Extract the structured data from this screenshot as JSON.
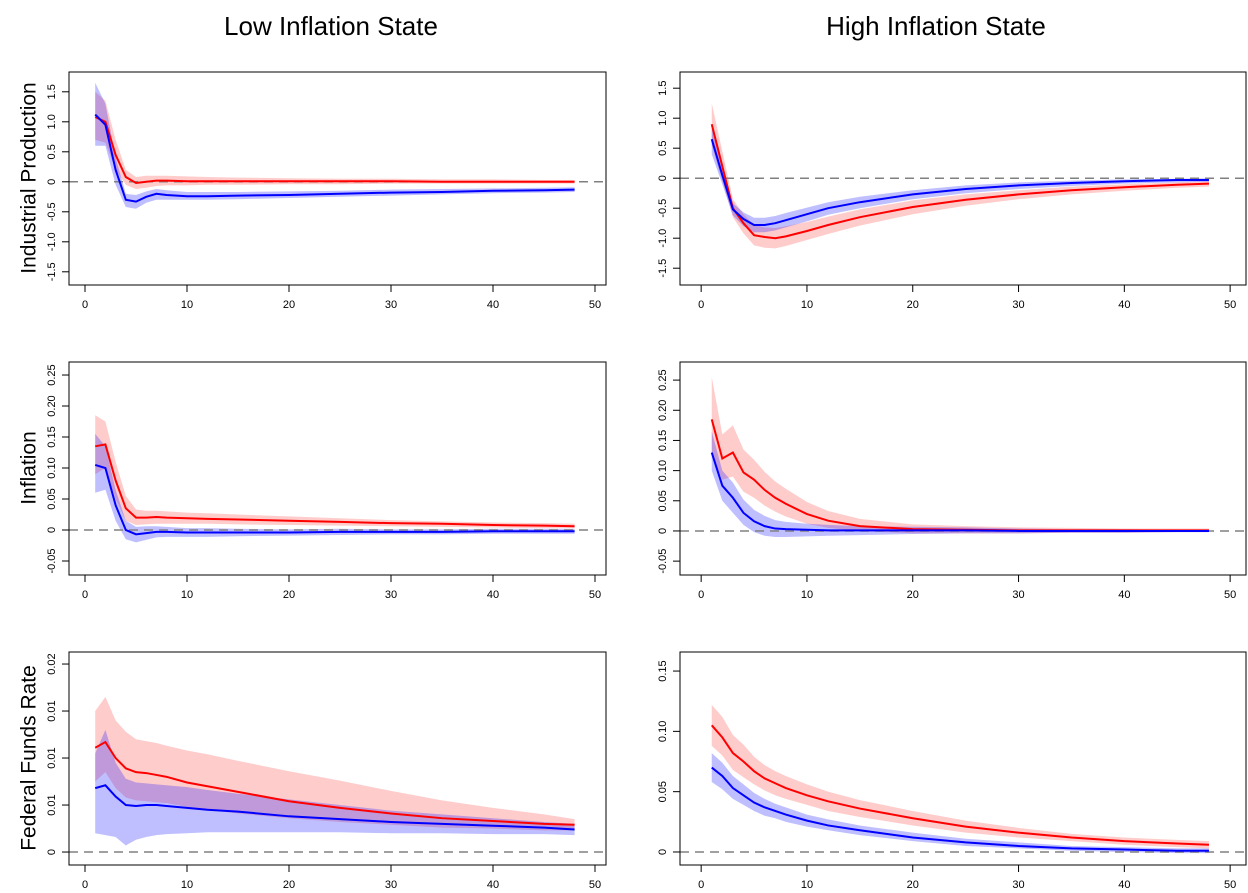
{
  "column_titles": [
    "Low Inflation State",
    "High Inflation State"
  ],
  "row_labels": [
    "Industrial Production",
    "Inflation",
    "Federal Funds Rate"
  ],
  "chart_data": [
    {
      "type": "line",
      "x": [
        1,
        2,
        3,
        4,
        5,
        6,
        7,
        8,
        10,
        12,
        15,
        20,
        25,
        30,
        35,
        40,
        45,
        48
      ],
      "xlim": [
        -1.57,
        51.08
      ],
      "xticks": [
        0,
        10,
        20,
        30,
        40,
        50
      ],
      "ylim": [
        -1.72,
        1.83
      ],
      "yticks": [
        -1.5,
        {
          "value": -1,
          "label": "-1.0"
        },
        -0.5,
        0,
        0.5,
        {
          "value": 1,
          "label": "1.0"
        },
        1.5
      ],
      "hline": 0,
      "series": [
        {
          "color": "#ff0000",
          "band_color": "rgba(255,0,0,0.2)",
          "values": [
            1.08,
            1.0,
            0.45,
            0.08,
            -0.02,
            0.0,
            0.02,
            0.02,
            0.01,
            0.01,
            0.01,
            0.01,
            0.01,
            0.01,
            0.0,
            0.0,
            0.0,
            0.0
          ],
          "lower": [
            0.7,
            0.65,
            0.2,
            -0.05,
            -0.12,
            -0.1,
            -0.07,
            -0.06,
            -0.06,
            -0.05,
            -0.05,
            -0.04,
            -0.04,
            -0.03,
            -0.03,
            -0.03,
            -0.03,
            -0.03
          ],
          "upper": [
            1.5,
            1.35,
            0.7,
            0.2,
            0.08,
            0.1,
            0.1,
            0.1,
            0.09,
            0.08,
            0.07,
            0.06,
            0.05,
            0.05,
            0.04,
            0.04,
            0.03,
            0.03
          ]
        },
        {
          "color": "#0000ff",
          "band_color": "rgba(0,0,255,0.25)",
          "values": [
            1.12,
            0.95,
            0.2,
            -0.3,
            -0.33,
            -0.25,
            -0.2,
            -0.22,
            -0.24,
            -0.24,
            -0.23,
            -0.22,
            -0.2,
            -0.18,
            -0.17,
            -0.15,
            -0.14,
            -0.13
          ],
          "lower": [
            0.6,
            0.6,
            -0.05,
            -0.42,
            -0.45,
            -0.35,
            -0.3,
            -0.3,
            -0.3,
            -0.3,
            -0.29,
            -0.27,
            -0.25,
            -0.23,
            -0.21,
            -0.19,
            -0.18,
            -0.17
          ],
          "upper": [
            1.65,
            1.3,
            0.4,
            -0.2,
            -0.22,
            -0.16,
            -0.12,
            -0.14,
            -0.17,
            -0.17,
            -0.17,
            -0.16,
            -0.15,
            -0.13,
            -0.12,
            -0.11,
            -0.1,
            -0.09
          ]
        }
      ]
    },
    {
      "type": "line",
      "x": [
        1,
        2,
        3,
        4,
        5,
        6,
        7,
        8,
        10,
        12,
        15,
        20,
        25,
        30,
        35,
        40,
        45,
        48
      ],
      "xlim": [
        -2,
        51.5
      ],
      "xticks": [
        0,
        10,
        20,
        30,
        40,
        50
      ],
      "ylim": [
        -1.78,
        1.77
      ],
      "yticks": [
        -1.5,
        {
          "value": -1,
          "label": "-1.0"
        },
        -0.5,
        0,
        0.5,
        {
          "value": 1,
          "label": "1.0"
        },
        1.5
      ],
      "hline": 0,
      "series": [
        {
          "color": "#ff0000",
          "band_color": "rgba(255,0,0,0.2)",
          "values": [
            0.9,
            0.2,
            -0.5,
            -0.75,
            -0.95,
            -0.98,
            -1.0,
            -0.97,
            -0.88,
            -0.78,
            -0.65,
            -0.48,
            -0.36,
            -0.27,
            -0.2,
            -0.15,
            -0.11,
            -0.09
          ],
          "lower": [
            0.55,
            -0.05,
            -0.65,
            -0.92,
            -1.12,
            -1.16,
            -1.17,
            -1.13,
            -1.03,
            -0.93,
            -0.79,
            -0.6,
            -0.46,
            -0.35,
            -0.27,
            -0.21,
            -0.16,
            -0.14
          ],
          "upper": [
            1.25,
            0.45,
            -0.35,
            -0.6,
            -0.78,
            -0.82,
            -0.83,
            -0.8,
            -0.73,
            -0.64,
            -0.52,
            -0.37,
            -0.27,
            -0.2,
            -0.14,
            -0.1,
            -0.07,
            -0.05
          ]
        },
        {
          "color": "#0000ff",
          "band_color": "rgba(0,0,255,0.25)",
          "values": [
            0.65,
            0.05,
            -0.52,
            -0.68,
            -0.78,
            -0.78,
            -0.75,
            -0.7,
            -0.6,
            -0.5,
            -0.4,
            -0.27,
            -0.18,
            -0.12,
            -0.08,
            -0.05,
            -0.03,
            -0.03
          ],
          "lower": [
            0.4,
            -0.1,
            -0.62,
            -0.8,
            -0.9,
            -0.9,
            -0.87,
            -0.82,
            -0.72,
            -0.61,
            -0.5,
            -0.35,
            -0.25,
            -0.18,
            -0.13,
            -0.09,
            -0.07,
            -0.06
          ],
          "upper": [
            0.9,
            0.2,
            -0.42,
            -0.57,
            -0.66,
            -0.66,
            -0.63,
            -0.58,
            -0.49,
            -0.4,
            -0.31,
            -0.2,
            -0.12,
            -0.07,
            -0.04,
            -0.02,
            -0.01,
            0.0
          ]
        }
      ]
    },
    {
      "type": "line",
      "x": [
        1,
        2,
        3,
        4,
        5,
        6,
        7,
        8,
        10,
        12,
        15,
        20,
        25,
        30,
        35,
        40,
        45,
        48
      ],
      "xlim": [
        -1.57,
        51.08
      ],
      "xticks": [
        0,
        10,
        20,
        30,
        40,
        50
      ],
      "ylim": [
        -0.0726,
        0.271
      ],
      "yticks": [
        -0.05,
        0,
        0.05,
        {
          "value": 0.1,
          "label": "0.10"
        },
        0.15,
        {
          "value": 0.2,
          "label": "0.20"
        },
        0.25
      ],
      "hline": 0,
      "series": [
        {
          "color": "#ff0000",
          "band_color": "rgba(255,0,0,0.2)",
          "values": [
            0.135,
            0.138,
            0.08,
            0.035,
            0.02,
            0.02,
            0.021,
            0.02,
            0.019,
            0.018,
            0.017,
            0.015,
            0.013,
            0.011,
            0.01,
            0.008,
            0.007,
            0.006
          ],
          "lower": [
            0.09,
            0.1,
            0.05,
            0.015,
            0.008,
            0.009,
            0.01,
            0.01,
            0.01,
            0.01,
            0.009,
            0.008,
            0.007,
            0.006,
            0.005,
            0.004,
            0.003,
            0.003
          ],
          "upper": [
            0.185,
            0.175,
            0.11,
            0.055,
            0.033,
            0.031,
            0.031,
            0.03,
            0.028,
            0.027,
            0.025,
            0.022,
            0.019,
            0.016,
            0.014,
            0.012,
            0.011,
            0.01
          ]
        },
        {
          "color": "#0000ff",
          "band_color": "rgba(0,0,255,0.25)",
          "values": [
            0.105,
            0.1,
            0.04,
            0.0,
            -0.007,
            -0.005,
            -0.003,
            -0.003,
            -0.004,
            -0.004,
            -0.004,
            -0.004,
            -0.003,
            -0.003,
            -0.003,
            -0.002,
            -0.002,
            -0.002
          ],
          "lower": [
            0.06,
            0.065,
            0.015,
            -0.015,
            -0.02,
            -0.016,
            -0.012,
            -0.011,
            -0.011,
            -0.011,
            -0.01,
            -0.009,
            -0.008,
            -0.007,
            -0.007,
            -0.006,
            -0.006,
            -0.006
          ],
          "upper": [
            0.155,
            0.135,
            0.065,
            0.015,
            0.005,
            0.006,
            0.006,
            0.005,
            0.003,
            0.003,
            0.002,
            0.001,
            0.002,
            0.001,
            0.001,
            0.002,
            0.002,
            0.002
          ]
        }
      ]
    },
    {
      "type": "line",
      "x": [
        1,
        2,
        3,
        4,
        5,
        6,
        7,
        8,
        10,
        12,
        15,
        20,
        25,
        30,
        35,
        40,
        45,
        48
      ],
      "xlim": [
        -2,
        51.5
      ],
      "xticks": [
        0,
        10,
        20,
        30,
        40,
        50
      ],
      "ylim": [
        -0.073,
        0.28
      ],
      "yticks": [
        -0.05,
        0,
        0.05,
        {
          "value": 0.1,
          "label": "0.10"
        },
        0.15,
        {
          "value": 0.2,
          "label": "0.20"
        },
        0.25
      ],
      "hline": 0,
      "series": [
        {
          "color": "#ff0000",
          "band_color": "rgba(255,0,0,0.2)",
          "values": [
            0.185,
            0.12,
            0.13,
            0.097,
            0.085,
            0.068,
            0.055,
            0.045,
            0.028,
            0.017,
            0.008,
            0.003,
            0.002,
            0.001,
            0.001,
            0.001,
            0.001,
            0.001
          ],
          "lower": [
            0.125,
            0.085,
            0.09,
            0.065,
            0.055,
            0.042,
            0.032,
            0.024,
            0.012,
            0.005,
            0.0,
            -0.004,
            -0.004,
            -0.004,
            -0.003,
            -0.003,
            -0.002,
            -0.002
          ],
          "upper": [
            0.255,
            0.16,
            0.175,
            0.135,
            0.118,
            0.098,
            0.082,
            0.07,
            0.048,
            0.033,
            0.02,
            0.011,
            0.008,
            0.006,
            0.005,
            0.004,
            0.004,
            0.004
          ]
        },
        {
          "color": "#0000ff",
          "band_color": "rgba(0,0,255,0.25)",
          "values": [
            0.13,
            0.075,
            0.055,
            0.03,
            0.016,
            0.008,
            0.004,
            0.003,
            0.002,
            0.001,
            0.001,
            0.001,
            0.001,
            0,
            0,
            0,
            0,
            0
          ],
          "lower": [
            0.1,
            0.05,
            0.03,
            0.01,
            -0.002,
            -0.008,
            -0.01,
            -0.01,
            -0.009,
            -0.008,
            -0.007,
            -0.005,
            -0.004,
            -0.004,
            -0.003,
            -0.003,
            -0.002,
            -0.002
          ],
          "upper": [
            0.165,
            0.1,
            0.08,
            0.052,
            0.035,
            0.025,
            0.018,
            0.015,
            0.012,
            0.01,
            0.008,
            0.007,
            0.006,
            0.004,
            0.003,
            0.003,
            0.002,
            0.002
          ]
        }
      ]
    },
    {
      "type": "line",
      "x": [
        1,
        2,
        3,
        4,
        5,
        6,
        7,
        8,
        10,
        12,
        15,
        20,
        25,
        30,
        35,
        40,
        45,
        48
      ],
      "xlim": [
        -1.57,
        51.08
      ],
      "xticks": [
        0,
        10,
        20,
        30,
        40,
        50
      ],
      "ylim": [
        -0.00138,
        0.02128
      ],
      "yticks": [
        0,
        {
          "value": 0.005,
          "label": "0.01"
        },
        0.01,
        {
          "value": 0.015,
          "label": "0.01"
        },
        0.02
      ],
      "hline": 0,
      "series": [
        {
          "color": "#ff0000",
          "band_color": "rgba(255,0,0,0.2)",
          "values": [
            0.0111,
            0.0117,
            0.01,
            0.0089,
            0.0085,
            0.0084,
            0.0082,
            0.008,
            0.0074,
            0.007,
            0.0064,
            0.0054,
            0.0047,
            0.0041,
            0.0036,
            0.0033,
            0.003,
            0.0029
          ],
          "lower": [
            0.0075,
            0.0085,
            0.0068,
            0.0058,
            0.0055,
            0.0054,
            0.0053,
            0.0052,
            0.0048,
            0.0045,
            0.0041,
            0.0036,
            0.0032,
            0.0029,
            0.0026,
            0.0025,
            0.0023,
            0.0023
          ],
          "upper": [
            0.015,
            0.0165,
            0.014,
            0.0128,
            0.012,
            0.0118,
            0.0116,
            0.0113,
            0.0108,
            0.0104,
            0.0097,
            0.0086,
            0.0076,
            0.0065,
            0.0055,
            0.0047,
            0.004,
            0.0035
          ]
        },
        {
          "color": "#0000ff",
          "band_color": "rgba(0,0,255,0.25)",
          "values": [
            0.0068,
            0.0071,
            0.0059,
            0.005,
            0.0049,
            0.005,
            0.005,
            0.0049,
            0.0047,
            0.0045,
            0.0043,
            0.0038,
            0.0035,
            0.0032,
            0.003,
            0.0028,
            0.0026,
            0.0024
          ],
          "lower": [
            0.002,
            0.0018,
            0.0016,
            0.0007,
            0.0013,
            0.0016,
            0.0018,
            0.0019,
            0.002,
            0.0021,
            0.0021,
            0.0021,
            0.0021,
            0.002,
            0.002,
            0.0019,
            0.0019,
            0.0018
          ],
          "upper": [
            0.0105,
            0.013,
            0.0095,
            0.0078,
            0.0074,
            0.0073,
            0.0072,
            0.0071,
            0.0069,
            0.0066,
            0.0062,
            0.0056,
            0.005,
            0.0044,
            0.004,
            0.0036,
            0.0032,
            0.003
          ]
        }
      ]
    },
    {
      "type": "line",
      "x": [
        1,
        2,
        3,
        4,
        5,
        6,
        7,
        8,
        10,
        12,
        15,
        20,
        25,
        30,
        35,
        40,
        45,
        48
      ],
      "xlim": [
        -2,
        51.5
      ],
      "xticks": [
        0,
        10,
        20,
        30,
        40,
        50
      ],
      "ylim": [
        -0.0108,
        0.1658
      ],
      "yticks": [
        0,
        0.05,
        {
          "value": 0.1,
          "label": "0.10"
        },
        0.15
      ],
      "hline": 0,
      "series": [
        {
          "color": "#ff0000",
          "band_color": "rgba(255,0,0,0.2)",
          "values": [
            0.105,
            0.095,
            0.082,
            0.075,
            0.067,
            0.061,
            0.057,
            0.053,
            0.047,
            0.042,
            0.036,
            0.028,
            0.021,
            0.016,
            0.012,
            0.009,
            0.007,
            0.006
          ],
          "lower": [
            0.088,
            0.08,
            0.068,
            0.062,
            0.056,
            0.051,
            0.047,
            0.044,
            0.039,
            0.034,
            0.029,
            0.022,
            0.016,
            0.012,
            0.009,
            0.006,
            0.004,
            0.003
          ],
          "upper": [
            0.122,
            0.112,
            0.097,
            0.089,
            0.079,
            0.072,
            0.067,
            0.063,
            0.056,
            0.05,
            0.043,
            0.034,
            0.026,
            0.02,
            0.015,
            0.012,
            0.01,
            0.009
          ]
        },
        {
          "color": "#0000ff",
          "band_color": "rgba(0,0,255,0.25)",
          "values": [
            0.07,
            0.063,
            0.053,
            0.047,
            0.041,
            0.037,
            0.034,
            0.031,
            0.026,
            0.022,
            0.018,
            0.012,
            0.008,
            0.005,
            0.003,
            0.002,
            0.001,
            0.001
          ],
          "lower": [
            0.058,
            0.052,
            0.044,
            0.039,
            0.034,
            0.03,
            0.028,
            0.025,
            0.021,
            0.018,
            0.014,
            0.009,
            0.005,
            0.003,
            0.001,
            0.0,
            -0.001,
            -0.001
          ],
          "upper": [
            0.082,
            0.074,
            0.063,
            0.056,
            0.049,
            0.044,
            0.04,
            0.037,
            0.031,
            0.027,
            0.022,
            0.016,
            0.011,
            0.008,
            0.005,
            0.004,
            0.003,
            0.003
          ]
        }
      ]
    }
  ]
}
